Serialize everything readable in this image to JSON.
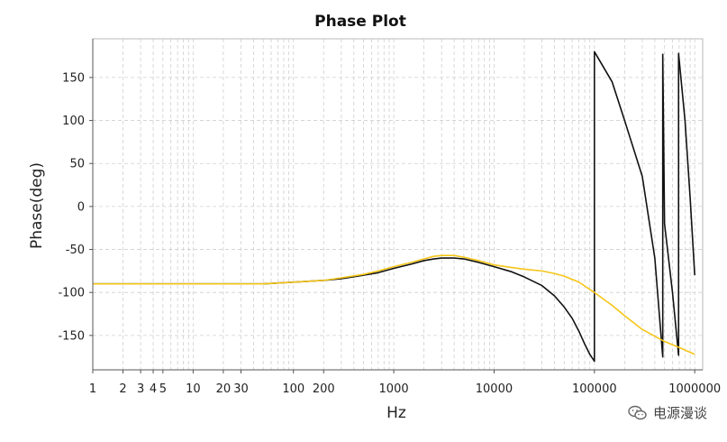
{
  "chart_data": {
    "type": "line",
    "title": "Phase Plot",
    "xlabel": "Hz",
    "ylabel": "Phase(deg)",
    "xscale": "log",
    "xlim": [
      1,
      1200000
    ],
    "ylim": [
      -190,
      195
    ],
    "grid": true,
    "x_tick_labels": [
      {
        "value": 1,
        "label": "1"
      },
      {
        "value": 2,
        "label": "2"
      },
      {
        "value": 3,
        "label": "3"
      },
      {
        "value": 4,
        "label": "4"
      },
      {
        "value": 5,
        "label": "5"
      },
      {
        "value": 10,
        "label": "10"
      },
      {
        "value": 20,
        "label": "20"
      },
      {
        "value": 30,
        "label": "30"
      },
      {
        "value": 100,
        "label": "100"
      },
      {
        "value": 200,
        "label": "200"
      },
      {
        "value": 1000,
        "label": "1000"
      },
      {
        "value": 10000,
        "label": "10000"
      },
      {
        "value": 100000,
        "label": "100000"
      },
      {
        "value": 1000000,
        "label": "1000000"
      }
    ],
    "y_ticks": [
      150,
      100,
      50,
      0,
      -50,
      -100,
      -150
    ],
    "series": [
      {
        "color": "#111111",
        "points": [
          [
            1,
            -90
          ],
          [
            20,
            -90
          ],
          [
            50,
            -90
          ],
          [
            100,
            -88
          ],
          [
            200,
            -86
          ],
          [
            300,
            -84
          ],
          [
            500,
            -80
          ],
          [
            700,
            -77
          ],
          [
            1000,
            -72
          ],
          [
            1500,
            -67
          ],
          [
            2000,
            -63
          ],
          [
            2500,
            -61
          ],
          [
            3000,
            -60
          ],
          [
            4000,
            -60
          ],
          [
            5000,
            -61
          ],
          [
            7000,
            -65
          ],
          [
            10000,
            -70
          ],
          [
            15000,
            -76
          ],
          [
            20000,
            -82
          ],
          [
            30000,
            -92
          ],
          [
            40000,
            -104
          ],
          [
            50000,
            -117
          ],
          [
            60000,
            -130
          ],
          [
            70000,
            -145
          ],
          [
            80000,
            -160
          ],
          [
            90000,
            -172
          ],
          [
            100000,
            -180
          ],
          [
            100000.1,
            180
          ],
          [
            150000,
            145
          ],
          [
            200000,
            100
          ],
          [
            300000,
            35
          ],
          [
            400000,
            -60
          ],
          [
            480000,
            -175
          ],
          [
            480000.1,
            177
          ],
          [
            500000,
            -20
          ],
          [
            600000,
            -100
          ],
          [
            690000,
            -173
          ],
          [
            690000.1,
            178
          ],
          [
            800000,
            100
          ],
          [
            900000,
            10
          ],
          [
            1000000,
            -80
          ]
        ]
      },
      {
        "color": "#F5C518",
        "points": [
          [
            1,
            -90
          ],
          [
            20,
            -90
          ],
          [
            50,
            -90
          ],
          [
            100,
            -88
          ],
          [
            200,
            -86
          ],
          [
            300,
            -83
          ],
          [
            500,
            -79
          ],
          [
            700,
            -75
          ],
          [
            1000,
            -70
          ],
          [
            1500,
            -65
          ],
          [
            2000,
            -61
          ],
          [
            2500,
            -58
          ],
          [
            3000,
            -57
          ],
          [
            4000,
            -57
          ],
          [
            5000,
            -59
          ],
          [
            7000,
            -63
          ],
          [
            10000,
            -68
          ],
          [
            15000,
            -71
          ],
          [
            20000,
            -73
          ],
          [
            30000,
            -75
          ],
          [
            40000,
            -78
          ],
          [
            50000,
            -81
          ],
          [
            70000,
            -88
          ],
          [
            100000,
            -100
          ],
          [
            150000,
            -115
          ],
          [
            200000,
            -127
          ],
          [
            300000,
            -143
          ],
          [
            500000,
            -157
          ],
          [
            700000,
            -164
          ],
          [
            1000000,
            -172
          ]
        ]
      }
    ]
  },
  "watermark": {
    "text": "电源漫谈",
    "icon": "wechat-icon"
  }
}
